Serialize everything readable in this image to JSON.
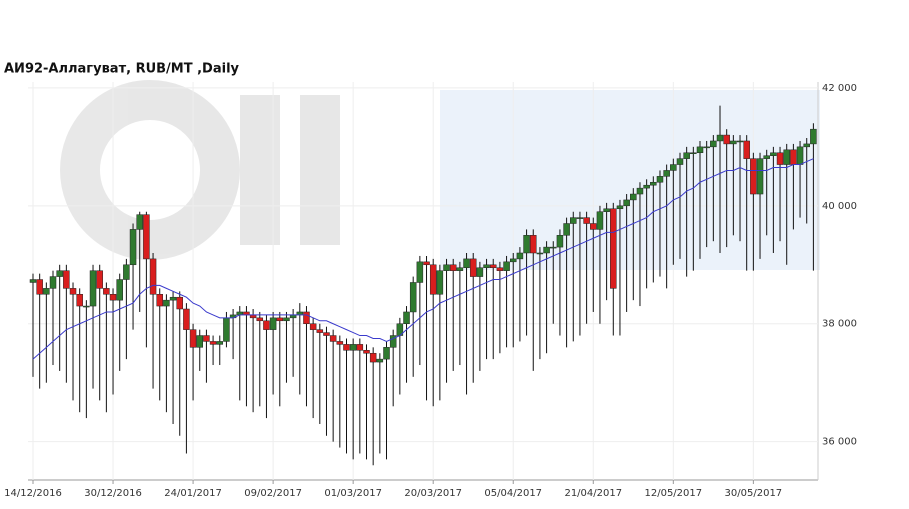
{
  "chart_data": {
    "type": "candlestick",
    "title": "АИ92-Аллагуват,  RUB/MT ,Daily",
    "categories": [
      "14/12/2016",
      null,
      null,
      null,
      null,
      null,
      null,
      null,
      null,
      null,
      null,
      null,
      "30/12/2016",
      null,
      null,
      null,
      null,
      null,
      null,
      null,
      null,
      null,
      null,
      null,
      "24/01/2017",
      null,
      null,
      null,
      null,
      null,
      null,
      null,
      null,
      null,
      null,
      null,
      "09/02/2017",
      null,
      null,
      null,
      null,
      null,
      null,
      null,
      null,
      null,
      null,
      null,
      "01/03/2017",
      null,
      null,
      null,
      null,
      null,
      null,
      null,
      null,
      null,
      null,
      null,
      "20/03/2017",
      null,
      null,
      null,
      null,
      null,
      null,
      null,
      null,
      null,
      null,
      null,
      "05/04/2017",
      null,
      null,
      null,
      null,
      null,
      null,
      null,
      null,
      null,
      null,
      null,
      "21/04/2017",
      null,
      null,
      null,
      null,
      null,
      null,
      null,
      null,
      null,
      null,
      null,
      "12/05/2017",
      null,
      null,
      null,
      null,
      null,
      null,
      null,
      null,
      null,
      null,
      null,
      "30/05/2017",
      null,
      null,
      null,
      null,
      null,
      null,
      null,
      null,
      null
    ],
    "open": [
      38700,
      38750,
      38500,
      38600,
      38800,
      38900,
      38600,
      38500,
      38300,
      38300,
      38900,
      38600,
      38500,
      38400,
      38750,
      39000,
      39600,
      39850,
      39100,
      38500,
      38300,
      38400,
      38450,
      38250,
      37900,
      37600,
      37800,
      37700,
      37650,
      37700,
      38100,
      38150,
      38200,
      38150,
      38100,
      38050,
      37900,
      38100,
      38050,
      38100,
      38150,
      38200,
      38000,
      37900,
      37850,
      37800,
      37700,
      37650,
      37550,
      37650,
      37550,
      37500,
      37350,
      37400,
      37600,
      37800,
      38000,
      38200,
      38700,
      39050,
      39000,
      38500,
      38900,
      39000,
      38900,
      38950,
      39100,
      38800,
      38950,
      39000,
      38950,
      38900,
      39050,
      39100,
      39200,
      39500,
      39200,
      39200,
      39300,
      39300,
      39500,
      39700,
      39800,
      39800,
      39700,
      39600,
      39900,
      39950,
      39950,
      40000,
      40100,
      40200,
      40300,
      40350,
      40400,
      40500,
      40600,
      40700,
      40800,
      40900,
      40900,
      41000,
      41000,
      41100,
      41200,
      41050,
      41100,
      41100,
      40800,
      40200,
      40800,
      40850,
      40900,
      40700,
      40950,
      40700,
      41000,
      41050
    ],
    "high": [
      38850,
      38850,
      38700,
      38900,
      39000,
      39000,
      38700,
      38600,
      38400,
      39000,
      39000,
      38700,
      38600,
      38850,
      39100,
      39700,
      39900,
      39900,
      39200,
      38600,
      38500,
      38550,
      38550,
      38350,
      38000,
      37900,
      37900,
      37800,
      37800,
      38200,
      38250,
      38300,
      38300,
      38250,
      38200,
      38150,
      38200,
      38200,
      38200,
      38250,
      38350,
      38300,
      38100,
      38000,
      37950,
      37900,
      37800,
      37750,
      37750,
      37750,
      37650,
      37600,
      37500,
      37700,
      37900,
      38100,
      38300,
      38800,
      39150,
      39150,
      39100,
      39000,
      39100,
      39100,
      39050,
      39200,
      39200,
      39050,
      39100,
      39100,
      39050,
      39150,
      39200,
      39300,
      39600,
      39600,
      39300,
      39400,
      39400,
      39600,
      39800,
      39900,
      39900,
      39900,
      39800,
      40000,
      40050,
      40050,
      40100,
      40200,
      40300,
      40400,
      40450,
      40500,
      40600,
      40700,
      40800,
      40900,
      41000,
      41000,
      41100,
      41100,
      41200,
      41700,
      41300,
      41200,
      41200,
      41200,
      40900,
      40900,
      40950,
      41000,
      41000,
      41050,
      41050,
      41100,
      41150,
      41400
    ],
    "low": [
      37100,
      36900,
      37000,
      37300,
      37200,
      37000,
      36700,
      36500,
      36400,
      36900,
      36700,
      36500,
      36800,
      37200,
      37400,
      37900,
      38200,
      37600,
      36900,
      36700,
      36500,
      36300,
      36100,
      35800,
      36700,
      37200,
      37000,
      37300,
      37300,
      37600,
      37400,
      36700,
      36600,
      36500,
      36600,
      36400,
      36800,
      36600,
      37000,
      37100,
      36800,
      36600,
      36400,
      36300,
      36100,
      36000,
      35900,
      35800,
      35700,
      35800,
      35700,
      35600,
      35800,
      35700,
      36600,
      36800,
      37000,
      37100,
      37300,
      36700,
      36600,
      36700,
      37000,
      37200,
      37300,
      36800,
      37000,
      37200,
      37400,
      37400,
      37500,
      37600,
      37600,
      37700,
      37800,
      37200,
      37400,
      37500,
      38000,
      37800,
      37600,
      37700,
      37800,
      38000,
      38200,
      38000,
      38400,
      37800,
      37800,
      38200,
      38400,
      38300,
      38600,
      38700,
      38800,
      38600,
      39000,
      39100,
      38800,
      38900,
      39100,
      39300,
      39400,
      39200,
      39300,
      39500,
      39400,
      38900,
      38900,
      39100,
      39500,
      39200,
      39400,
      39000,
      39600,
      39800,
      39700,
      38900
    ],
    "close": [
      38750,
      38500,
      38600,
      38800,
      38900,
      38600,
      38500,
      38300,
      38300,
      38900,
      38600,
      38500,
      38400,
      38750,
      39000,
      39600,
      39850,
      39100,
      38500,
      38300,
      38400,
      38450,
      38250,
      37900,
      37600,
      37800,
      37700,
      37650,
      37700,
      38100,
      38150,
      38200,
      38150,
      38100,
      38050,
      37900,
      38100,
      38050,
      38100,
      38150,
      38200,
      38000,
      37900,
      37850,
      37800,
      37700,
      37650,
      37550,
      37650,
      37550,
      37500,
      37350,
      37400,
      37600,
      37800,
      38000,
      38200,
      38700,
      39050,
      39000,
      38500,
      38900,
      39000,
      38900,
      38950,
      39100,
      38800,
      38950,
      39000,
      38950,
      38900,
      39050,
      39100,
      39200,
      39500,
      39200,
      39200,
      39300,
      39300,
      39500,
      39700,
      39800,
      39800,
      39700,
      39600,
      39900,
      39950,
      38600,
      40000,
      40100,
      40200,
      40300,
      40350,
      40400,
      40500,
      40600,
      40700,
      40800,
      40900,
      40900,
      41000,
      41000,
      41100,
      41200,
      41050,
      41100,
      41100,
      40800,
      40200,
      40800,
      40850,
      40900,
      40700,
      40950,
      40700,
      41000,
      41050,
      41300
    ],
    "up_color": "#2f7a2f",
    "down_color": "#d91e1e",
    "ma": {
      "color": "#3a3acc",
      "values": [
        37400,
        37500,
        37600,
        37700,
        37800,
        37900,
        37950,
        38000,
        38050,
        38100,
        38150,
        38200,
        38200,
        38250,
        38300,
        38350,
        38500,
        38600,
        38650,
        38650,
        38600,
        38550,
        38500,
        38450,
        38350,
        38300,
        38200,
        38150,
        38100,
        38100,
        38100,
        38150,
        38150,
        38150,
        38150,
        38150,
        38150,
        38150,
        38150,
        38150,
        38150,
        38150,
        38100,
        38050,
        38050,
        38000,
        37950,
        37900,
        37850,
        37800,
        37800,
        37750,
        37750,
        37700,
        37750,
        37800,
        37900,
        38000,
        38100,
        38200,
        38250,
        38350,
        38400,
        38450,
        38500,
        38550,
        38600,
        38650,
        38700,
        38750,
        38750,
        38800,
        38850,
        38900,
        38950,
        39000,
        39050,
        39100,
        39150,
        39200,
        39250,
        39300,
        39350,
        39400,
        39450,
        39500,
        39550,
        39550,
        39600,
        39650,
        39700,
        39750,
        39800,
        39900,
        39950,
        40000,
        40100,
        40150,
        40250,
        40300,
        40400,
        40450,
        40500,
        40550,
        40600,
        40600,
        40650,
        40600,
        40600,
        40600,
        40600,
        40650,
        40650,
        40650,
        40700,
        40700,
        40750,
        40800
      ]
    },
    "ylim": [
      35350,
      42100
    ],
    "yticks": [
      {
        "value": 36000,
        "label": "36 000"
      },
      {
        "value": 38000,
        "label": "38 000"
      },
      {
        "value": 40000,
        "label": "40 000"
      },
      {
        "value": 42000,
        "label": "42 000"
      }
    ],
    "grid": true
  }
}
